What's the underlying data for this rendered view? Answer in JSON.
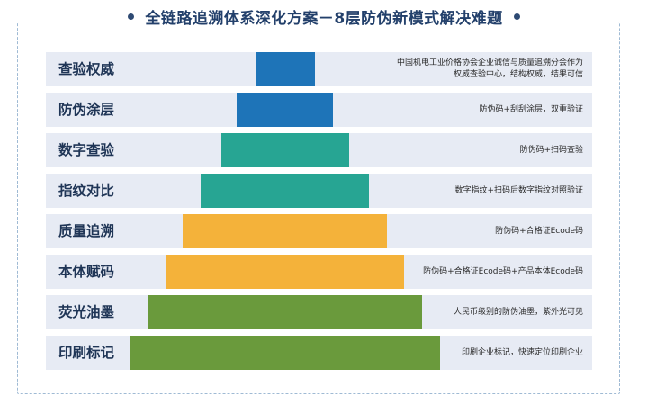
{
  "title": "全链路追溯体系深化方案－8层防伪新模式解决难题",
  "colors": {
    "blue": "#1e74b8",
    "teal": "#27a593",
    "yellow": "#f4b23a",
    "green": "#6a9a3c",
    "row_bg": "#e7ebf4"
  },
  "layers": [
    {
      "label": "查验权威",
      "desc": [
        "中国机电工业价格协会企业诚信与质量追溯分会作为",
        "权威查验中心，结构权威，结果可信"
      ]
    },
    {
      "label": "防伪涂层",
      "desc": [
        "防伪码+刮刮涂层，双重验证"
      ]
    },
    {
      "label": "数字查验",
      "desc": [
        "防伪码+扫码查验"
      ]
    },
    {
      "label": "指纹对比",
      "desc": [
        "数字指纹+扫码后数字指纹对照验证"
      ]
    },
    {
      "label": "质量追溯",
      "desc": [
        "防伪码+合格证Ecode码"
      ]
    },
    {
      "label": "本体赋码",
      "desc": [
        "防伪码+合格证Ecode码+产品本体Ecode码"
      ]
    },
    {
      "label": "荧光油墨",
      "desc": [
        "人民币级别的防伪油墨，紫外光可见"
      ]
    },
    {
      "label": "印刷标记",
      "desc": [
        "印刷企业标记，快速定位印刷企业"
      ]
    }
  ]
}
